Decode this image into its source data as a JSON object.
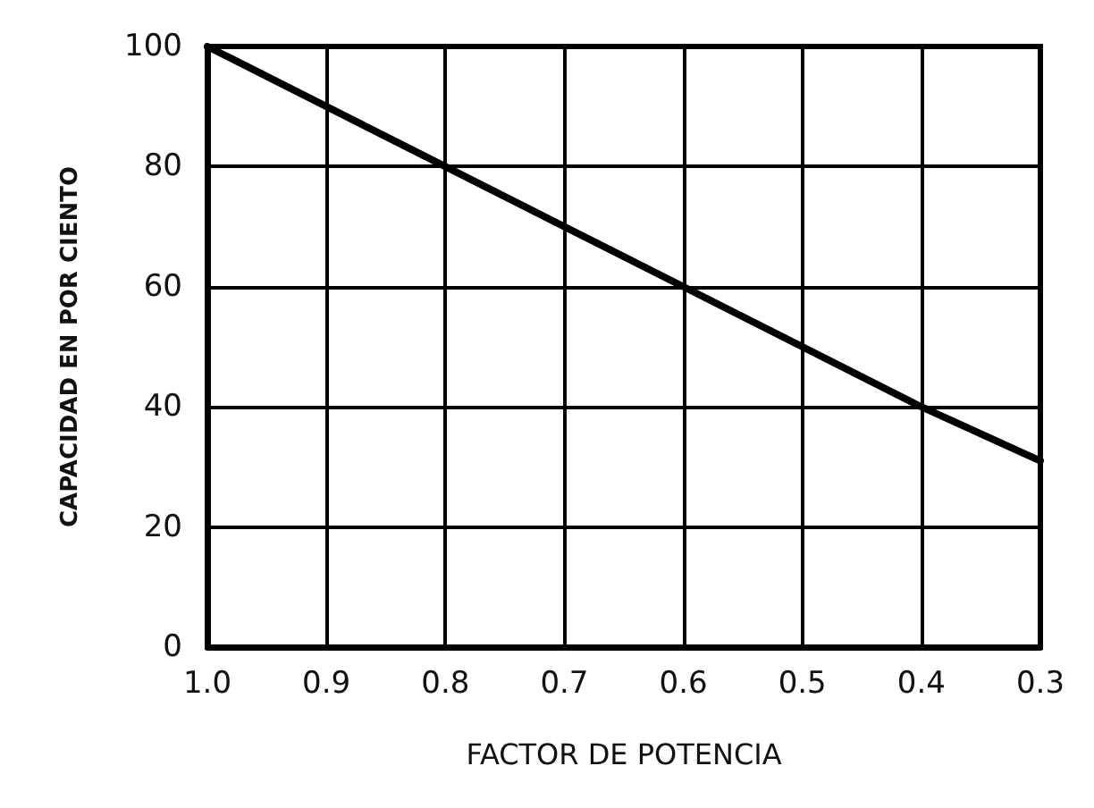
{
  "chart_data": {
    "type": "line",
    "xlabel": "FACTOR DE POTENCIA",
    "ylabel": "CAPACIDAD EN POR CIENTO",
    "x": [
      1.0,
      0.8,
      0.6,
      0.4,
      0.3
    ],
    "series": [
      {
        "color": "#000000",
        "values": [
          100,
          80,
          60,
          40,
          31
        ]
      }
    ],
    "xlim": [
      1.0,
      0.3
    ],
    "xticks": [
      {
        "value": 1,
        "label": "1.0"
      },
      0.9,
      0.8,
      0.7,
      0.6,
      0.5,
      0.4,
      0.3
    ],
    "ylim": [
      0,
      100
    ],
    "yticks": [
      0,
      20,
      40,
      60,
      80,
      100
    ],
    "grid": true,
    "marker": "none",
    "line_style": "solid"
  }
}
